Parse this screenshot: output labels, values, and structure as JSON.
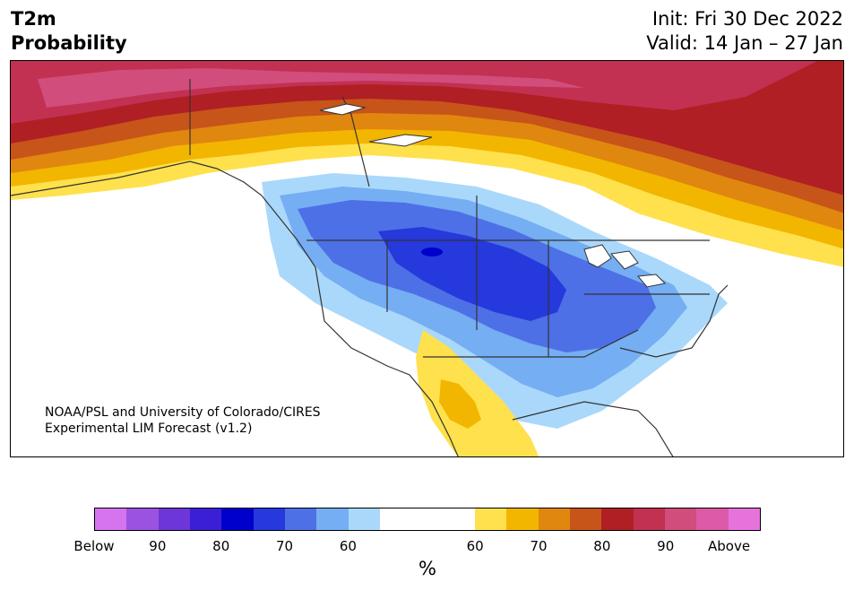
{
  "header": {
    "title_line1": "T2m",
    "title_line2": "Probability",
    "init": "Init: Fri 30 Dec 2022",
    "valid": "Valid: 14 Jan – 27 Jan"
  },
  "map": {
    "region": "North America",
    "credit_line1": "NOAA/PSL and University of Colorado/CIRES",
    "credit_line2": "Experimental LIM Forecast (v1.2)"
  },
  "colorbar": {
    "unit": "%",
    "below_colors": [
      "#d673ee",
      "#9c52e0",
      "#6d36d9",
      "#3a1fd6",
      "#0000cc",
      "#2639dc",
      "#4d70e6",
      "#75aef2",
      "#aad8fb"
    ],
    "neutral_color": "#ffffff",
    "above_colors": [
      "#ffe14d",
      "#f2b600",
      "#e0870f",
      "#c75419",
      "#b01f24",
      "#c23052",
      "#d04d7c",
      "#dc5aa8",
      "#e673dc"
    ],
    "tick_labels": [
      "Below",
      "90",
      "80",
      "70",
      "60",
      "60",
      "70",
      "80",
      "90",
      "Above"
    ]
  }
}
